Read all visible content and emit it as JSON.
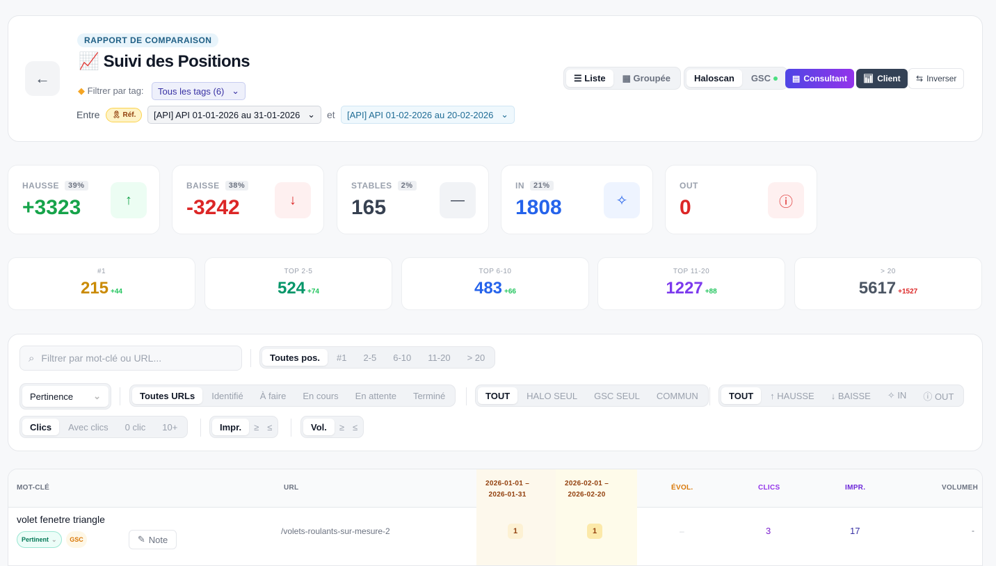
{
  "header": {
    "kicker": "RAPPORT DE COMPARAISON",
    "emoji": "📈",
    "title": "Suivi des Positions",
    "tag_label": "Filtrer par tag:",
    "tag_select": "Tous les tags (6)",
    "between": "Entre",
    "ref_badge": "Réf.",
    "period_a": "[API] API 01-01-2026 au 31-01-2026",
    "and": "et",
    "period_b": "[API] API 01-02-2026 au 20-02-2026"
  },
  "toolbar": {
    "view": [
      "Liste",
      "Groupée"
    ],
    "source": [
      "Haloscan",
      "GSC"
    ],
    "consultant": "Consultant",
    "client": "Client",
    "inverser": "Inverser"
  },
  "stats": [
    {
      "label": "HAUSSE",
      "pct": "39%",
      "value": "+3323",
      "color": "#16a34a",
      "icon": "arrow-up"
    },
    {
      "label": "BAISSE",
      "pct": "38%",
      "value": "-3242",
      "color": "#dc2626",
      "icon": "arrow-down"
    },
    {
      "label": "STABLES",
      "pct": "2%",
      "value": "165",
      "color": "#374151",
      "icon": "minus"
    },
    {
      "label": "IN",
      "pct": "21%",
      "value": "1808",
      "color": "#2563eb",
      "icon": "sparkles"
    },
    {
      "label": "OUT",
      "value": "0",
      "color": "#dc2626",
      "icon": "alert-circle"
    }
  ],
  "positions": [
    {
      "label": "#1",
      "value": "215",
      "delta": "+44",
      "color": "#ca8a04",
      "delta_color": "#22c55e"
    },
    {
      "label": "TOP 2-5",
      "value": "524",
      "delta": "+74",
      "color": "#059669",
      "delta_color": "#22c55e"
    },
    {
      "label": "TOP 6-10",
      "value": "483",
      "delta": "+66",
      "color": "#2563eb",
      "delta_color": "#22c55e"
    },
    {
      "label": "TOP 11-20",
      "value": "1227",
      "delta": "+88",
      "color": "#7c3aed",
      "delta_color": "#22c55e"
    },
    {
      "label": "> 20",
      "value": "5617",
      "delta": "+1527",
      "color": "#4b5563",
      "delta_color": "#dc2626"
    }
  ],
  "filters": {
    "search_placeholder": "Filtrer par mot-clé ou URL...",
    "pos": [
      "Toutes pos.",
      "#1",
      "2-5",
      "6-10",
      "11-20",
      "> 20"
    ],
    "sort": "Pertinence",
    "urls": [
      "Toutes URLs",
      "Identifié",
      "À faire",
      "En cours",
      "En attente",
      "Terminé"
    ],
    "source": [
      "TOUT",
      "HALO SEUL",
      "GSC SEUL",
      "COMMUN"
    ],
    "trend": [
      "TOUT",
      "↑ HAUSSE",
      "↓ BAISSE",
      "✧ IN",
      "ⓘ OUT"
    ],
    "clics": [
      "Clics",
      "Avec clics",
      "0 clic",
      "10+"
    ],
    "impr": [
      "Impr.",
      "≥",
      "≤"
    ],
    "vol": [
      "Vol.",
      "≥",
      "≤"
    ]
  },
  "table": {
    "headers": {
      "keyword": "MOT-CLÉ",
      "url": "URL",
      "p1a": "2026-01-01 –",
      "p1b": "2026-01-31",
      "p2a": "2026-02-01 –",
      "p2b": "2026-02-20",
      "evol": "ÉVOL.",
      "clics": "CLICS",
      "impr": "IMPR.",
      "volume": "VOLUMEH"
    },
    "rows": [
      {
        "keyword": "volet fenetre triangle",
        "status": "Pertinent",
        "source": "GSC",
        "note": "Note",
        "url": "/volets-roulants-sur-mesure-2",
        "pos1": "1",
        "pos2": "1",
        "evol": "–",
        "clics": "3",
        "impr": "17",
        "volume": "-"
      }
    ]
  }
}
